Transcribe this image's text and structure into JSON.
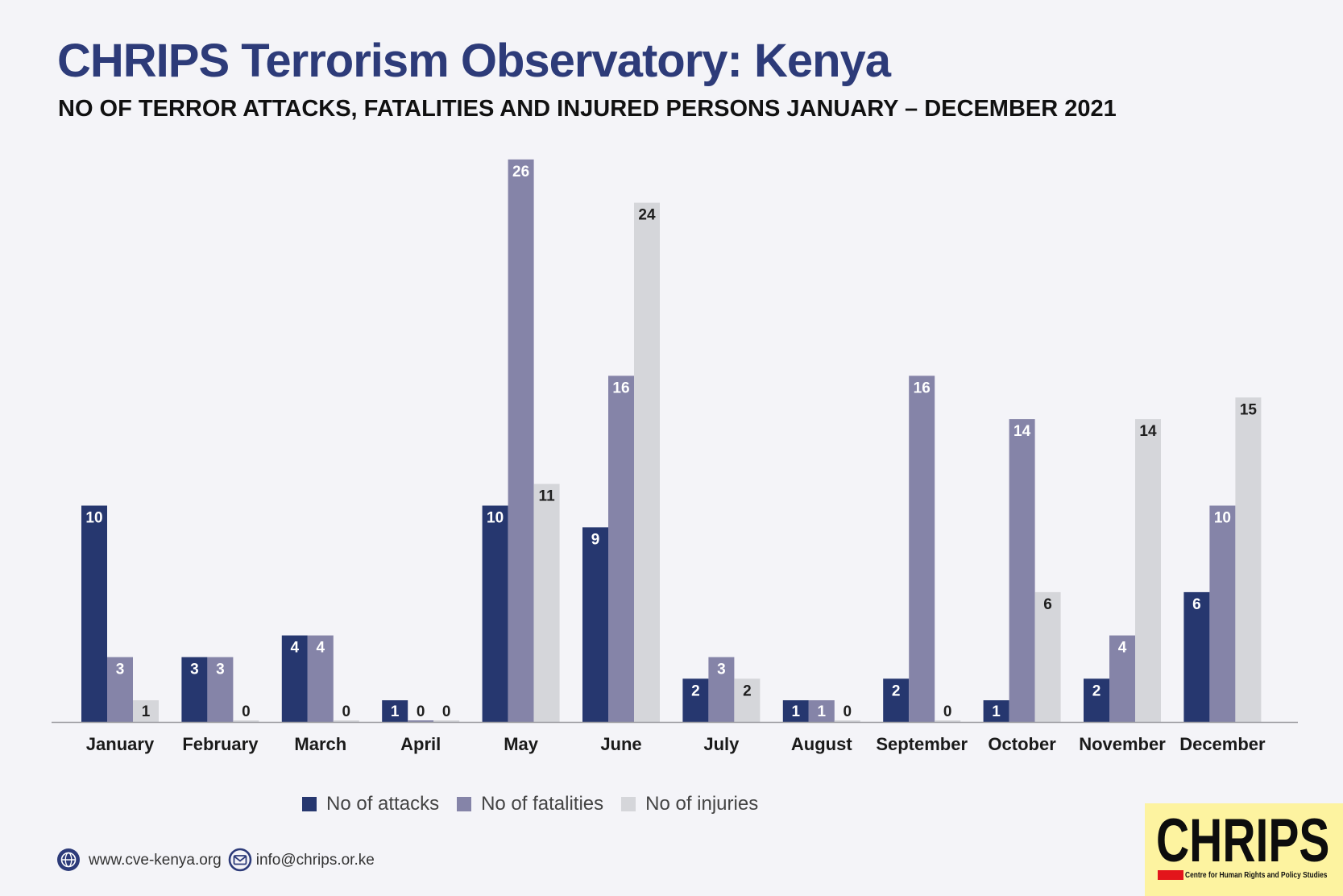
{
  "chart_data": {
    "type": "bar",
    "title": "CHRIPS Terrorism Observatory: Kenya",
    "subtitle": "NO OF TERROR ATTACKS, FATALITIES AND INJURED PERSONS JANUARY – DECEMBER 2021",
    "categories": [
      "January",
      "February",
      "March",
      "April",
      "May",
      "June",
      "July",
      "August",
      "September",
      "October",
      "November",
      "December"
    ],
    "series": [
      {
        "name": "No of attacks",
        "color": "#26376f",
        "values": [
          10,
          3,
          4,
          1,
          10,
          9,
          2,
          1,
          2,
          1,
          2,
          6
        ]
      },
      {
        "name": "No of fatalities",
        "color": "#8584a8",
        "values": [
          3,
          3,
          4,
          0,
          26,
          16,
          3,
          1,
          16,
          14,
          4,
          10
        ]
      },
      {
        "name": "No of injuries",
        "color": "#d5d6da",
        "values": [
          1,
          0,
          0,
          0,
          11,
          24,
          2,
          0,
          0,
          6,
          14,
          15
        ]
      }
    ],
    "data_labels": true,
    "grid": false,
    "legend": "bottom"
  },
  "footer": {
    "website": "www.cve-kenya.org",
    "website_icon": "globe-icon",
    "email": "info@chrips.or.ke",
    "email_icon": "mail-icon"
  },
  "logo": {
    "name": "CHRIPS",
    "tagline": "Centre for Human Rights and Policy Studies",
    "background": "#fdf3a0",
    "accent": "#e3151b"
  },
  "colors": {
    "title": "#2d3b79",
    "background": "#f4f4f8",
    "axis": "#9a9aa0"
  }
}
